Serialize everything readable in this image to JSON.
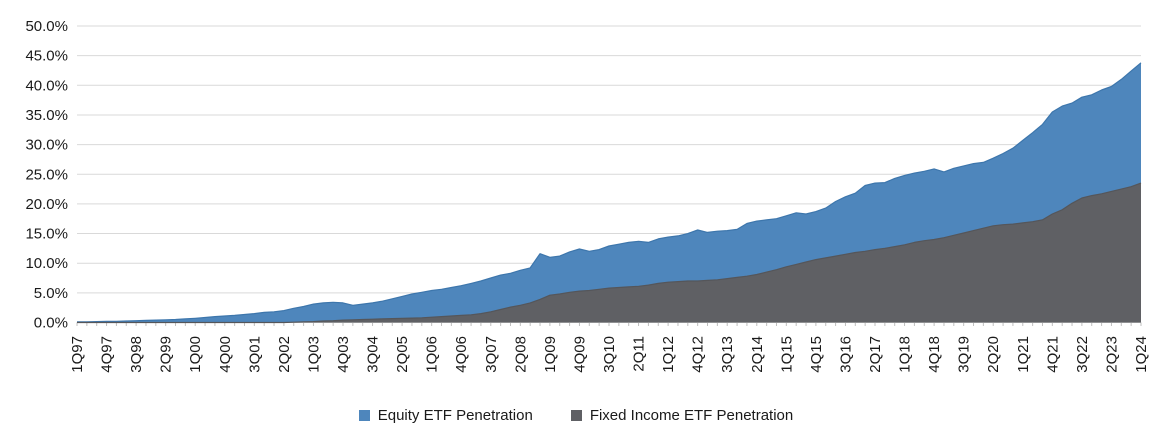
{
  "chart_data": {
    "type": "area",
    "subtype": "overlay",
    "title": "",
    "xlabel": "",
    "ylabel": "",
    "ylim": [
      0,
      50
    ],
    "y_tick_step": 5,
    "grid": true,
    "legend_position": "bottom",
    "y_tick_labels": [
      "0.0%",
      "5.0%",
      "10.0%",
      "15.0%",
      "20.0%",
      "25.0%",
      "30.0%",
      "35.0%",
      "40.0%",
      "45.0%",
      "50.0%"
    ],
    "x_label_step": 3,
    "x_tick_labels": [
      "1Q97",
      "4Q97",
      "3Q98",
      "2Q99",
      "1Q00",
      "4Q00",
      "3Q01",
      "2Q02",
      "1Q03",
      "4Q03",
      "3Q04",
      "2Q05",
      "1Q06",
      "4Q06",
      "3Q07",
      "2Q08",
      "1Q09",
      "4Q09",
      "3Q10",
      "2Q11",
      "1Q12",
      "4Q12",
      "3Q13",
      "2Q14",
      "1Q15",
      "4Q15",
      "3Q16",
      "2Q17",
      "1Q18",
      "4Q18",
      "3Q19",
      "2Q20",
      "1Q21",
      "4Q21",
      "3Q22",
      "2Q23",
      "1Q24"
    ],
    "x": [
      "1Q97",
      "2Q97",
      "3Q97",
      "4Q97",
      "1Q98",
      "2Q98",
      "3Q98",
      "4Q98",
      "1Q99",
      "2Q99",
      "3Q99",
      "4Q99",
      "1Q00",
      "2Q00",
      "3Q00",
      "4Q00",
      "1Q01",
      "2Q01",
      "3Q01",
      "4Q01",
      "1Q02",
      "2Q02",
      "3Q02",
      "4Q02",
      "1Q03",
      "2Q03",
      "3Q03",
      "4Q03",
      "1Q04",
      "2Q04",
      "3Q04",
      "4Q04",
      "1Q05",
      "2Q05",
      "3Q05",
      "4Q05",
      "1Q06",
      "2Q06",
      "3Q06",
      "4Q06",
      "1Q07",
      "2Q07",
      "3Q07",
      "4Q07",
      "1Q08",
      "2Q08",
      "3Q08",
      "4Q08",
      "1Q09",
      "2Q09",
      "3Q09",
      "4Q09",
      "1Q10",
      "2Q10",
      "3Q10",
      "4Q10",
      "1Q11",
      "2Q11",
      "3Q11",
      "4Q11",
      "1Q12",
      "2Q12",
      "3Q12",
      "4Q12",
      "1Q13",
      "2Q13",
      "3Q13",
      "4Q13",
      "1Q14",
      "2Q14",
      "3Q14",
      "4Q14",
      "1Q15",
      "2Q15",
      "3Q15",
      "4Q15",
      "1Q16",
      "2Q16",
      "3Q16",
      "4Q16",
      "1Q17",
      "2Q17",
      "3Q17",
      "4Q17",
      "1Q18",
      "2Q18",
      "3Q18",
      "4Q18",
      "1Q19",
      "2Q19",
      "3Q19",
      "4Q19",
      "1Q20",
      "2Q20",
      "3Q20",
      "4Q20",
      "1Q21",
      "2Q21",
      "3Q21",
      "4Q21",
      "1Q22",
      "2Q22",
      "3Q22",
      "4Q22",
      "1Q23",
      "2Q23",
      "3Q23",
      "4Q23",
      "1Q24"
    ],
    "series": [
      {
        "name": "Equity ETF Penetration",
        "color": "#4E86BC",
        "edge_color": "#3D76AC",
        "values": [
          0.1,
          0.1,
          0.15,
          0.2,
          0.2,
          0.25,
          0.3,
          0.35,
          0.4,
          0.45,
          0.5,
          0.6,
          0.7,
          0.85,
          1,
          1.1,
          1.2,
          1.35,
          1.5,
          1.7,
          1.8,
          2,
          2.4,
          2.7,
          3.1,
          3.3,
          3.4,
          3.3,
          2.9,
          3.1,
          3.3,
          3.6,
          4,
          4.4,
          4.8,
          5.1,
          5.4,
          5.6,
          5.9,
          6.2,
          6.6,
          7,
          7.5,
          8,
          8.3,
          8.8,
          9.2,
          11.6,
          11,
          11.2,
          11.9,
          12.4,
          12,
          12.3,
          12.9,
          13.2,
          13.5,
          13.7,
          13.5,
          14.1,
          14.4,
          14.6,
          15,
          15.6,
          15.2,
          15.4,
          15.5,
          15.7,
          16.7,
          17.1,
          17.3,
          17.5,
          18,
          18.5,
          18.3,
          18.7,
          19.3,
          20.4,
          21.2,
          21.8,
          23.1,
          23.5,
          23.6,
          24.3,
          24.8,
          25.2,
          25.5,
          25.9,
          25.4,
          26,
          26.4,
          26.8,
          27,
          27.7,
          28.5,
          29.4,
          30.7,
          32,
          33.4,
          35.5,
          36.5,
          37,
          38,
          38.4,
          39.2,
          39.8,
          41,
          42.4,
          43.8
        ]
      },
      {
        "name": "Fixed Income ETF Penetration",
        "color": "#5F6064",
        "edge_color": "#55565A",
        "values": [
          0,
          0,
          0,
          0,
          0,
          0,
          0,
          0,
          0,
          0,
          0,
          0,
          0,
          0,
          0,
          0,
          0,
          0,
          0,
          0,
          0,
          0,
          0.05,
          0.1,
          0.15,
          0.25,
          0.3,
          0.4,
          0.45,
          0.5,
          0.55,
          0.6,
          0.65,
          0.7,
          0.75,
          0.8,
          0.9,
          1,
          1.1,
          1.2,
          1.3,
          1.5,
          1.8,
          2.2,
          2.6,
          2.9,
          3.3,
          3.9,
          4.6,
          4.8,
          5.1,
          5.3,
          5.4,
          5.6,
          5.8,
          5.9,
          6,
          6.1,
          6.3,
          6.6,
          6.8,
          6.9,
          7,
          7,
          7.1,
          7.2,
          7.4,
          7.6,
          7.8,
          8.1,
          8.5,
          8.9,
          9.4,
          9.8,
          10.2,
          10.6,
          10.9,
          11.2,
          11.5,
          11.8,
          12,
          12.3,
          12.5,
          12.8,
          13.1,
          13.5,
          13.8,
          14,
          14.3,
          14.7,
          15.1,
          15.5,
          15.9,
          16.3,
          16.5,
          16.6,
          16.8,
          17,
          17.3,
          18.3,
          19,
          20.1,
          21,
          21.4,
          21.7,
          22.1,
          22.5,
          22.9,
          23.5
        ]
      }
    ]
  },
  "legend": {
    "items": [
      {
        "label": "Equity ETF Penetration",
        "color": "#4E86BC",
        "slug": "equity"
      },
      {
        "label": "Fixed Income ETF Penetration",
        "color": "#5F6064",
        "slug": "fixed-income"
      }
    ]
  },
  "colors": {
    "background": "#FFFFFF",
    "gridline": "#D9D9D9",
    "axis": "#BFBFBF",
    "text": "#1A1A1A"
  }
}
